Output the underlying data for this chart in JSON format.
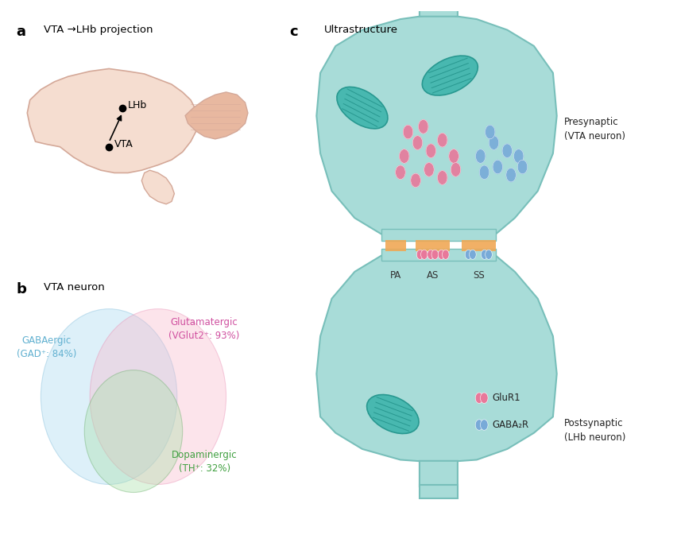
{
  "bg_color": "#ffffff",
  "panel_a_title": "a",
  "panel_a_label": "VTA →LHb projection",
  "panel_b_title": "b",
  "panel_b_label": "VTA neuron",
  "panel_c_title": "c",
  "panel_c_label": "Ultrastructure",
  "brain_color": "#f5ddd0",
  "brain_outline_color": "#d4a898",
  "cerebellum_color": "#e8b8a0",
  "neuron_color": "#a8dcd8",
  "neuron_edge_color": "#78bfba",
  "synapse_orange": "#f0a855",
  "vesicle_pink": "#e8789a",
  "vesicle_blue": "#78aad8",
  "mito_color": "#48b8b0",
  "mito_edge": "#289890",
  "circle_blue_fc": "#a8d8f0",
  "circle_pink_fc": "#f8b8cc",
  "circle_green_fc": "#a8e0a8",
  "circle_blue_ec": "#78b8d8",
  "circle_pink_ec": "#e888b0",
  "circle_green_ec": "#60a860",
  "label_blue": "#60b0d0",
  "label_pink": "#d050a0",
  "label_green": "#40a040",
  "presynaptic_label": "Presynaptic\n(VTA neuron)",
  "postsynaptic_label": "Postsynaptic\n(LHb neuron)",
  "pa_label": "PA",
  "as_label": "AS",
  "ss_label": "SS",
  "glur1_label": "GluR1",
  "gabaar_label": "GABA₂R",
  "lhb_label": "LHb",
  "vta_label": "VTA",
  "gabaergic_label": "GABAergic\n(GAD⁺: 84%)",
  "glutamatergic_label": "Glutamatergic\n(VGlut2⁺: 93%)",
  "dopaminergic_label": "Dopaminergic\n(TH⁺: 32%)"
}
